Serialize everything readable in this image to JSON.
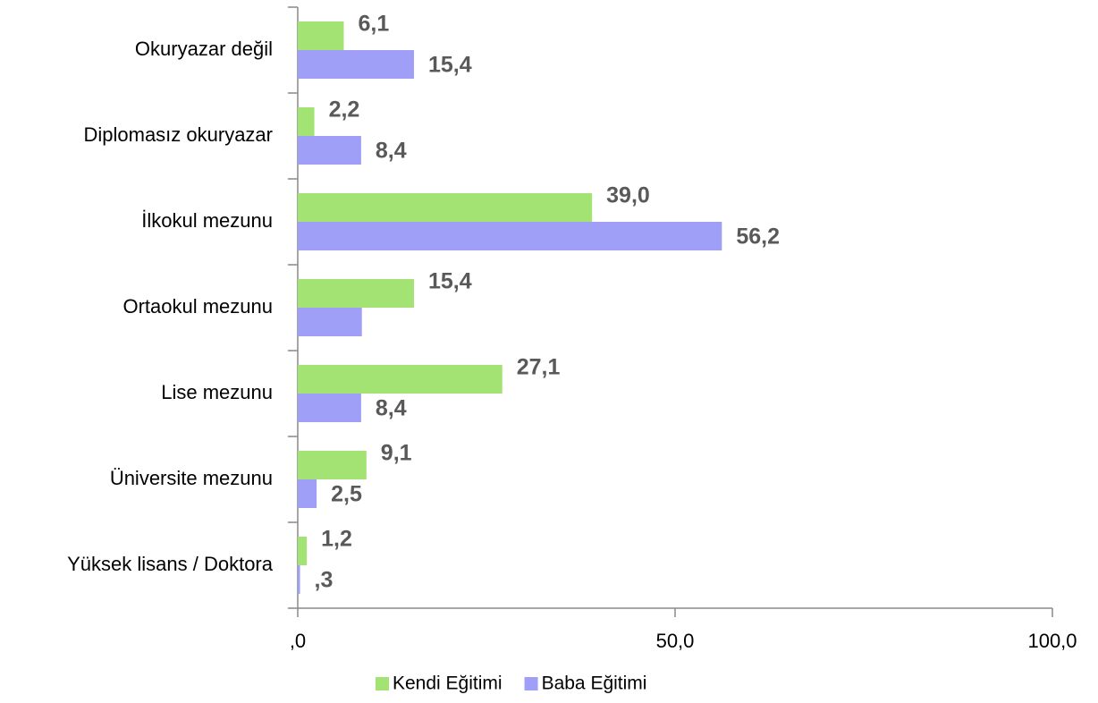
{
  "chart_data": {
    "type": "bar",
    "orientation": "horizontal",
    "categories": [
      "Okuryazar değil",
      "Diplomasız okuryazar",
      "İlkokul mezunu",
      "Ortaokul mezunu",
      "Lise mezunu",
      "Üniversite mezunu",
      "Yüksek lisans / Doktora"
    ],
    "series": [
      {
        "name": "Kendi Eğitimi",
        "color": "#a3e374",
        "values": [
          6.1,
          2.2,
          39.0,
          15.4,
          27.1,
          9.1,
          1.2
        ],
        "value_labels": [
          "6,1",
          "2,2",
          "39,0",
          "15,4",
          "27,1",
          "9,1",
          "1,2"
        ]
      },
      {
        "name": "Baba Eğitimi",
        "color": "#9f9ff8",
        "values": [
          15.4,
          8.4,
          56.2,
          8.5,
          8.4,
          2.5,
          0.3
        ],
        "value_labels": [
          "15,4",
          "8,4",
          "56,2",
          null,
          "8,4",
          "2,5",
          ",3"
        ]
      }
    ],
    "xlim": [
      0,
      100
    ],
    "xticks": [
      {
        "value": 0,
        "label": ",0"
      },
      {
        "value": 50,
        "label": "50,0"
      },
      {
        "value": 100,
        "label": "100,0"
      }
    ],
    "legend": "bottom",
    "grid": false
  }
}
